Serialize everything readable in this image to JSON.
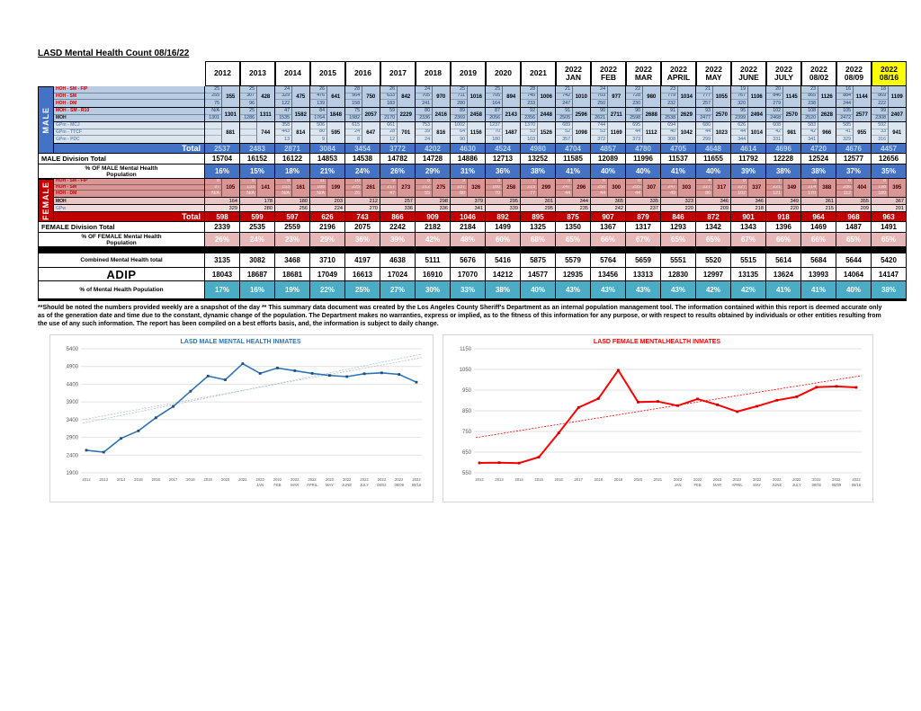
{
  "title": "LASD Mental Health Count 08/16/22",
  "columns": [
    "2012",
    "2013",
    "2014",
    "2015",
    "2016",
    "2017",
    "2018",
    "2019",
    "2020",
    "2021",
    "2022 JAN",
    "2022 FEB",
    "2022 MAR",
    "2022 APRIL",
    "2022 MAY",
    "2022 JUNE",
    "2022 JULY",
    "2022 08/02",
    "2022 08/09",
    "2022 08/16"
  ],
  "highlight_last_column": true,
  "colors": {
    "male_accent": "#4472C4",
    "male_light": "#B8CCE4",
    "male_lighter": "#DCE6F1",
    "female_accent": "#C00000",
    "female_light": "#D99694",
    "female_lighter": "#F2DCDB",
    "female_pct": "#E6B8B7",
    "teal": "#4BACC6",
    "highlight": "#FFFF00"
  },
  "male": {
    "side_label": "MALE",
    "total_label": "Total",
    "division_total_label": "MALE Division Total",
    "pct_label": "% OF MALE Mental Health Population",
    "blocks": {
      "hoh": {
        "labels": [
          "HOH - SM - FIP",
          "HOH - SM",
          "HOH - DM"
        ],
        "values": [
          [
            25,
            255,
            75
          ],
          [
            25,
            307,
            96
          ],
          [
            24,
            329,
            122
          ],
          [
            26,
            476,
            139
          ],
          [
            28,
            564,
            158
          ],
          [
            26,
            633,
            183
          ],
          [
            24,
            705,
            241
          ],
          [
            25,
            711,
            280
          ],
          [
            25,
            705,
            164
          ],
          [
            28,
            745,
            233
          ],
          [
            21,
            742,
            247
          ],
          [
            24,
            703,
            250
          ],
          [
            22,
            728,
            230
          ],
          [
            23,
            779,
            232
          ],
          [
            21,
            777,
            257
          ],
          [
            19,
            767,
            320
          ],
          [
            20,
            846,
            279
          ],
          [
            23,
            865,
            238
          ],
          [
            16,
            884,
            244
          ],
          [
            18,
            869,
            222
          ]
        ],
        "subtotals": [
          355,
          428,
          475,
          641,
          750,
          842,
          970,
          1016,
          894,
          1006,
          1010,
          977,
          980,
          1034,
          1055,
          1106,
          1145,
          1126,
          1144,
          1109
        ]
      },
      "moh": {
        "labels": [
          "MOH - SM - R10",
          "MOH"
        ],
        "values": [
          [
            "N/A",
            1301
          ],
          [
            25,
            1286
          ],
          [
            47,
            1535
          ],
          [
            84,
            1764
          ],
          [
            75,
            1982
          ],
          [
            59,
            2170
          ],
          [
            80,
            2336
          ],
          [
            89,
            2369
          ],
          [
            87,
            2056
          ],
          [
            92,
            2356
          ],
          [
            91,
            2505
          ],
          [
            90,
            2621
          ],
          [
            90,
            2598
          ],
          [
            91,
            2538
          ],
          [
            93,
            2477
          ],
          [
            95,
            2399
          ],
          [
            102,
            2468
          ],
          [
            108,
            2520
          ],
          [
            105,
            2472
          ],
          [
            99,
            2308
          ]
        ],
        "subtotals": [
          1301,
          1311,
          1582,
          1848,
          2057,
          2229,
          2416,
          2458,
          2143,
          2448,
          2596,
          2711,
          2688,
          2629,
          2570,
          2494,
          2570,
          2628,
          2577,
          2407
        ]
      },
      "gp": {
        "labels": [
          "GPm - MCJ",
          "GPm - TTCF",
          "GPm - PDC"
        ],
        "values": [
          [
            "",
            "",
            ""
          ],
          [
            "",
            "",
            ""
          ],
          [
            358,
            443,
            13
          ],
          [
            506,
            80,
            9
          ],
          [
            615,
            24,
            8
          ],
          [
            661,
            28,
            12
          ],
          [
            753,
            39,
            24
          ],
          [
            1002,
            64,
            90
          ],
          [
            1237,
            70,
            180
          ],
          [
            1370,
            53,
            103
          ],
          [
            689,
            52,
            357
          ],
          [
            744,
            53,
            372
          ],
          [
            695,
            44,
            373
          ],
          [
            694,
            40,
            308
          ],
          [
            680,
            44,
            299
          ],
          [
            626,
            44,
            344
          ],
          [
            608,
            42,
            331
          ],
          [
            583,
            42,
            341
          ],
          [
            585,
            41,
            329
          ],
          [
            592,
            33,
            316
          ]
        ],
        "subtotals": [
          881,
          744,
          814,
          595,
          647,
          701,
          816,
          1156,
          1487,
          1526,
          1098,
          1169,
          1112,
          1042,
          1023,
          1014,
          981,
          966,
          955,
          941
        ]
      }
    },
    "totals": [
      2537,
      2483,
      2871,
      3084,
      3454,
      3772,
      4202,
      4630,
      4524,
      4980,
      4704,
      4857,
      4780,
      4705,
      4648,
      4614,
      4696,
      4720,
      4676,
      4457
    ],
    "division_totals": [
      15704,
      16152,
      16122,
      14853,
      14538,
      14782,
      14728,
      14886,
      12713,
      13252,
      11585,
      12089,
      11996,
      11537,
      11655,
      11792,
      12228,
      12524,
      12577,
      12656
    ],
    "pcts": [
      "16%",
      "15%",
      "18%",
      "21%",
      "24%",
      "26%",
      "29%",
      "31%",
      "36%",
      "38%",
      "41%",
      "40%",
      "40%",
      "41%",
      "40%",
      "39%",
      "38%",
      "38%",
      "37%",
      "35%"
    ]
  },
  "female": {
    "side_label": "FEMALE",
    "total_label": "Total",
    "division_total_label": "FEMALE Division Total",
    "pct_label": "% OF FEMALE Mental Health Population",
    "blocks": {
      "hoh": {
        "labels": [
          "HOH - SM - FIP",
          "HOH - SM",
          "HOH - DM"
        ],
        "values": [
          [
            8,
            97,
            "N/A"
          ],
          [
            8,
            133,
            "N/A"
          ],
          [
            8,
            153,
            "N/A"
          ],
          [
            11,
            188,
            "N/A"
          ],
          [
            10,
            225,
            26
          ],
          [
            9,
            217,
            47
          ],
          [
            8,
            212,
            55
          ],
          [
            9,
            237,
            80
          ],
          [
            8,
            180,
            70
          ],
          [
            7,
            215,
            77
          ],
          [
            5,
            247,
            44
          ],
          [
            6,
            250,
            44
          ],
          [
            8,
            255,
            44
          ],
          [
            7,
            247,
            49
          ],
          [
            4,
            227,
            86
          ],
          [
            8,
            227,
            102
          ],
          [
            7,
            221,
            121
          ],
          [
            4,
            214,
            170
          ],
          [
            6,
            286,
            112
          ],
          [
            8,
            198,
            189
          ]
        ],
        "subtotals": [
          105,
          141,
          161,
          199,
          261,
          273,
          275,
          326,
          258,
          299,
          296,
          300,
          307,
          303,
          317,
          337,
          349,
          388,
          404,
          395
        ]
      },
      "moh": {
        "label": "MOH",
        "values": [
          164,
          178,
          180,
          203,
          212,
          257,
          298,
          379,
          295,
          301,
          344,
          365,
          335,
          323,
          346,
          346,
          349,
          361,
          355,
          367
        ]
      },
      "gpw": {
        "label": "GPw",
        "values": [
          329,
          280,
          256,
          224,
          270,
          336,
          336,
          341,
          339,
          295,
          235,
          242,
          237,
          220,
          209,
          218,
          220,
          215,
          209,
          201
        ]
      }
    },
    "totals": [
      598,
      599,
      597,
      626,
      743,
      866,
      909,
      1046,
      892,
      895,
      875,
      907,
      879,
      846,
      872,
      901,
      918,
      964,
      968,
      963
    ],
    "division_totals": [
      2339,
      2535,
      2559,
      2196,
      2075,
      2242,
      2182,
      2184,
      1499,
      1325,
      1350,
      1367,
      1317,
      1293,
      1342,
      1343,
      1396,
      1469,
      1487,
      1491
    ],
    "pcts": [
      "26%",
      "24%",
      "23%",
      "29%",
      "36%",
      "39%",
      "42%",
      "48%",
      "60%",
      "68%",
      "65%",
      "66%",
      "67%",
      "65%",
      "65%",
      "67%",
      "66%",
      "66%",
      "65%",
      "65%"
    ]
  },
  "combined": {
    "label": "Combined Mental Health total",
    "values": [
      3135,
      3082,
      3468,
      3710,
      4197,
      4638,
      5111,
      5676,
      5416,
      5875,
      5579,
      5764,
      5659,
      5551,
      5520,
      5515,
      5614,
      5684,
      5644,
      5420
    ]
  },
  "adip": {
    "label": "ADIP",
    "values": [
      18043,
      18687,
      18681,
      17049,
      16613,
      17024,
      16910,
      17070,
      14212,
      14577,
      12935,
      13456,
      13313,
      12830,
      12997,
      13135,
      13624,
      13993,
      14064,
      14147
    ]
  },
  "mh_pct": {
    "label": "% of Mental Health Population",
    "values": [
      "17%",
      "16%",
      "19%",
      "22%",
      "25%",
      "27%",
      "30%",
      "33%",
      "38%",
      "40%",
      "43%",
      "43%",
      "43%",
      "43%",
      "42%",
      "42%",
      "41%",
      "41%",
      "40%",
      "38%"
    ]
  },
  "disclaimer": "**Should be noted the numbers provided weekly are a snapshot of the day ** This summary data document was created by the Los Angeles County Sheriff's Department as an internal population management tool.  The information contained within this report is deemed accurate only as of the generation date and time due to the constant, dynamic change of the population.  The Department makes no warranties, express or implied, as to the fitness of this information for any purpose, or with respect to results obtained by individuals or other entities resulting from the use of any such information.  The report has been compiled on a best efforts basis, and, the information is subject to daily change.",
  "chart_data": [
    {
      "type": "line",
      "name": "male-mental-health-chart",
      "title": "LASD MALE MENTAL HEALTH INMATES",
      "title_color": "#2E74B5",
      "line_color": "#2E74B5",
      "marker_color": "#1F4E79",
      "line_width": 1.6,
      "categories": [
        "2012",
        "2013",
        "2014",
        "2015",
        "2016",
        "2017",
        "2018",
        "2019",
        "2020",
        "2021",
        "2022 JAN",
        "2022 FEB",
        "2022 MAR",
        "2022 APRIL",
        "2022 MAY",
        "2022 JUNE",
        "2022 JULY",
        "2022 08/02",
        "2022 08/09",
        "2022 08/16"
      ],
      "values": [
        2537,
        2483,
        2871,
        3084,
        3454,
        3772,
        4202,
        4630,
        4524,
        4980,
        4704,
        4857,
        4780,
        4705,
        4648,
        4614,
        4696,
        4720,
        4676,
        4457
      ],
      "ylim": [
        1900,
        5400
      ],
      "ytick_step": 500,
      "grid": true,
      "legend": "none",
      "trendlines": [
        {
          "start": 3400,
          "end": 5150,
          "color": "#BFBFBF"
        },
        {
          "start": 3300,
          "end": 5250,
          "color": "#9DC3E6"
        }
      ]
    },
    {
      "type": "line",
      "name": "female-mental-health-chart",
      "title": "LASD FEMALE MENTALHEALTH INMATES",
      "title_color": "#FF0000",
      "line_color": "#FF0000",
      "marker_color": "#C00000",
      "line_width": 2,
      "categories": [
        "2012",
        "2013",
        "2014",
        "2015",
        "2016",
        "2017",
        "2018",
        "2019",
        "2020",
        "2021",
        "2022 JAN",
        "2022 FEB",
        "2022 MAR",
        "2022 APRIL",
        "2022 MAY",
        "2022 JUNE",
        "2022 JULY",
        "2022 08/02",
        "2022 08/09",
        "2022 08/16"
      ],
      "values": [
        598,
        599,
        597,
        626,
        743,
        866,
        909,
        1046,
        892,
        895,
        875,
        907,
        879,
        846,
        872,
        901,
        918,
        964,
        968,
        963
      ],
      "ylim": [
        550,
        1150
      ],
      "ytick_step": 100,
      "grid": true,
      "legend": "none",
      "trendlines": [
        {
          "start": 720,
          "end": 1020,
          "color": "#FF0000"
        }
      ]
    }
  ]
}
